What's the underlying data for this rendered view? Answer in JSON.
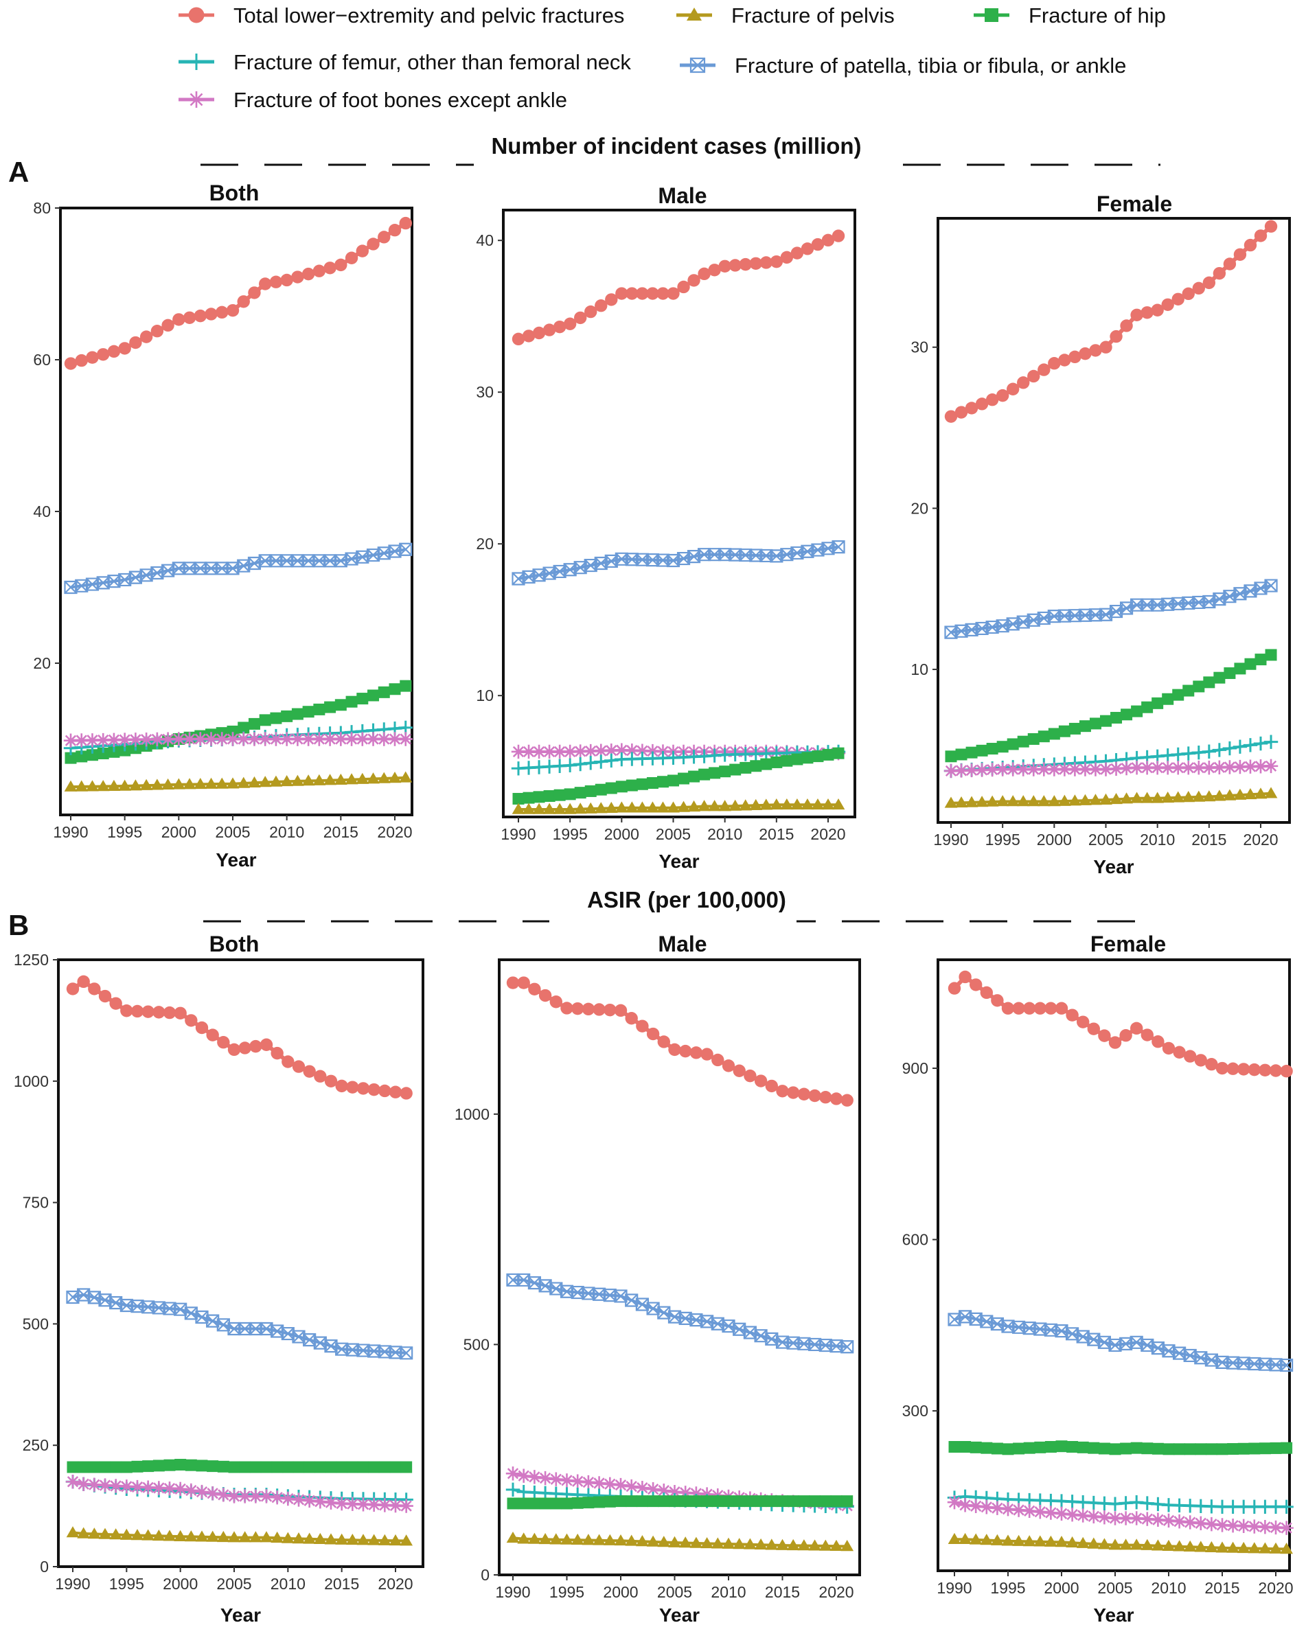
{
  "legend": [
    {
      "label": "Total lower−extremity and pelvic fractures",
      "color": "#E8736C",
      "marker": "circle"
    },
    {
      "label": "Fracture of pelvis",
      "color": "#B49A1E",
      "marker": "triangle"
    },
    {
      "label": "Fracture of hip",
      "color": "#2DB04A",
      "marker": "square"
    },
    {
      "label": "Fracture of femur, other than femoral neck",
      "color": "#27B5B5",
      "marker": "plus"
    },
    {
      "label": "Fracture of patella, tibia or fibula, or ankle",
      "color": "#6A9AD6",
      "marker": "boxx"
    },
    {
      "label": "Fracture of foot bones except ankle",
      "color": "#D279C4",
      "marker": "asterisk"
    }
  ],
  "sections": [
    {
      "letter": "A",
      "title": "Number of incident cases (million)"
    },
    {
      "letter": "B",
      "title": "ASIR (per 100,000)"
    }
  ],
  "chart_data": [
    {
      "type": "line",
      "section": "A",
      "title": "Both",
      "xlabel": "Year",
      "ylabel": "",
      "xlim": [
        1990,
        2021
      ],
      "ylim": [
        0,
        80
      ],
      "yticks": [
        20,
        40,
        60,
        80
      ],
      "xticks": [
        1990,
        1995,
        2000,
        2005,
        2010,
        2015,
        2020
      ],
      "x": [
        1990,
        1995,
        2000,
        2005,
        2008,
        2010,
        2015,
        2021
      ],
      "series": [
        {
          "name": "Total lower−extremity and pelvic fractures",
          "values": [
            59.5,
            61.5,
            65.3,
            66.5,
            70,
            70.5,
            72.5,
            78
          ]
        },
        {
          "name": "Fracture of patella, tibia or fibula, or ankle",
          "values": [
            30,
            31,
            32.5,
            32.5,
            33.5,
            33.5,
            33.5,
            35
          ]
        },
        {
          "name": "Fracture of hip",
          "values": [
            7.5,
            8.5,
            10,
            11,
            12.5,
            13,
            14.5,
            17
          ]
        },
        {
          "name": "Fracture of femur, other than femoral neck",
          "values": [
            8.8,
            9.3,
            9.8,
            10,
            10.3,
            10.5,
            10.8,
            11.5
          ]
        },
        {
          "name": "Fracture of foot bones except ankle",
          "values": [
            9.8,
            9.9,
            10,
            10,
            10,
            10,
            10,
            10
          ]
        },
        {
          "name": "Fracture of pelvis",
          "values": [
            3.7,
            3.8,
            4,
            4.1,
            4.3,
            4.4,
            4.6,
            4.9
          ]
        }
      ]
    },
    {
      "type": "line",
      "section": "A",
      "title": "Male",
      "xlabel": "Year",
      "ylabel": "",
      "xlim": [
        1990,
        2021
      ],
      "ylim": [
        2,
        42
      ],
      "yticks": [
        10,
        20,
        30,
        40
      ],
      "xticks": [
        1990,
        1995,
        2000,
        2005,
        2010,
        2015,
        2020
      ],
      "x": [
        1990,
        1995,
        2000,
        2005,
        2008,
        2010,
        2015,
        2021
      ],
      "series": [
        {
          "name": "Total lower−extremity and pelvic fractures",
          "values": [
            33.5,
            34.5,
            36.5,
            36.5,
            37.8,
            38.3,
            38.6,
            40.3
          ]
        },
        {
          "name": "Fracture of patella, tibia or fibula, or ankle",
          "values": [
            17.7,
            18.3,
            19,
            18.9,
            19.3,
            19.3,
            19.2,
            19.8
          ]
        },
        {
          "name": "Fracture of foot bones except ankle",
          "values": [
            6.3,
            6.3,
            6.4,
            6.3,
            6.3,
            6.3,
            6.3,
            6.2
          ]
        },
        {
          "name": "Fracture of femur, other than femoral neck",
          "values": [
            5.2,
            5.4,
            5.8,
            5.9,
            6,
            6.1,
            6.2,
            6.3
          ]
        },
        {
          "name": "Fracture of hip",
          "values": [
            3.2,
            3.5,
            4,
            4.4,
            4.8,
            5,
            5.6,
            6.2
          ]
        },
        {
          "name": "Fracture of pelvis",
          "values": [
            2.5,
            2.5,
            2.6,
            2.6,
            2.7,
            2.7,
            2.8,
            2.8
          ]
        }
      ]
    },
    {
      "type": "line",
      "section": "A",
      "title": "Female",
      "xlabel": "Year",
      "ylabel": "",
      "xlim": [
        1990,
        2021
      ],
      "ylim": [
        0.5,
        38
      ],
      "yticks": [
        10,
        20,
        30
      ],
      "xticks": [
        1990,
        1995,
        2000,
        2005,
        2010,
        2015,
        2020
      ],
      "x": [
        1990,
        1995,
        2000,
        2005,
        2008,
        2010,
        2015,
        2021
      ],
      "series": [
        {
          "name": "Total lower−extremity and pelvic fractures",
          "values": [
            25.7,
            27,
            29,
            30,
            32,
            32.3,
            34,
            37.5
          ]
        },
        {
          "name": "Fracture of patella, tibia or fibula, or ankle",
          "values": [
            12.3,
            12.7,
            13.3,
            13.4,
            14,
            14,
            14.2,
            15.2
          ]
        },
        {
          "name": "Fracture of hip",
          "values": [
            4.6,
            5.2,
            6,
            6.8,
            7.4,
            7.9,
            9.2,
            10.9
          ]
        },
        {
          "name": "Fracture of femur, other than femoral neck",
          "values": [
            3.7,
            3.9,
            4.1,
            4.3,
            4.5,
            4.6,
            4.9,
            5.5
          ]
        },
        {
          "name": "Fracture of foot bones except ankle",
          "values": [
            3.7,
            3.8,
            3.8,
            3.8,
            3.9,
            3.9,
            3.9,
            4
          ]
        },
        {
          "name": "Fracture of pelvis",
          "values": [
            1.7,
            1.8,
            1.8,
            1.9,
            2,
            2,
            2.1,
            2.3
          ]
        }
      ]
    },
    {
      "type": "line",
      "section": "B",
      "title": "Both",
      "xlabel": "Year",
      "ylabel": "",
      "xlim": [
        1990,
        2021
      ],
      "ylim": [
        0,
        1250
      ],
      "yticks": [
        0,
        250,
        500,
        750,
        1000,
        1250
      ],
      "xticks": [
        1990,
        1995,
        2000,
        2005,
        2010,
        2015,
        2020
      ],
      "x": [
        1990,
        1991,
        1995,
        2000,
        2005,
        2008,
        2010,
        2015,
        2021
      ],
      "series": [
        {
          "name": "Total lower−extremity and pelvic fractures",
          "values": [
            1190,
            1205,
            1145,
            1140,
            1065,
            1075,
            1040,
            990,
            975
          ]
        },
        {
          "name": "Fracture of patella, tibia or fibula, or ankle",
          "values": [
            555,
            560,
            538,
            530,
            490,
            490,
            480,
            448,
            440
          ]
        },
        {
          "name": "Fracture of hip",
          "values": [
            205,
            205,
            205,
            210,
            205,
            205,
            205,
            205,
            205
          ]
        },
        {
          "name": "Fracture of femur, other than femoral neck",
          "values": [
            175,
            170,
            160,
            155,
            148,
            148,
            145,
            140,
            138
          ]
        },
        {
          "name": "Fracture of foot bones except ankle",
          "values": [
            175,
            170,
            165,
            160,
            145,
            145,
            140,
            130,
            125
          ]
        },
        {
          "name": "Fracture of pelvis",
          "values": [
            70,
            68,
            65,
            62,
            60,
            60,
            58,
            55,
            53
          ]
        }
      ]
    },
    {
      "type": "line",
      "section": "B",
      "title": "Male",
      "xlabel": "Year",
      "ylabel": "",
      "xlim": [
        1990,
        2021
      ],
      "ylim": [
        0,
        1335
      ],
      "yticks": [
        0,
        500,
        1000
      ],
      "xticks": [
        1990,
        1995,
        2000,
        2005,
        2010,
        2015,
        2020
      ],
      "x": [
        1990,
        1991,
        1995,
        2000,
        2005,
        2008,
        2010,
        2015,
        2021
      ],
      "series": [
        {
          "name": "Total lower−extremity and pelvic fractures",
          "values": [
            1285,
            1285,
            1230,
            1225,
            1140,
            1130,
            1105,
            1050,
            1030
          ]
        },
        {
          "name": "Fracture of patella, tibia or fibula, or ankle",
          "values": [
            640,
            640,
            615,
            605,
            560,
            550,
            540,
            505,
            495
          ]
        },
        {
          "name": "Fracture of foot bones except ankle",
          "values": [
            220,
            215,
            205,
            195,
            180,
            175,
            170,
            160,
            150
          ]
        },
        {
          "name": "Fracture of femur, other than femoral neck",
          "values": [
            185,
            180,
            175,
            170,
            162,
            160,
            158,
            152,
            148
          ]
        },
        {
          "name": "Fracture of hip",
          "values": [
            155,
            155,
            155,
            160,
            160,
            160,
            160,
            160,
            160
          ]
        },
        {
          "name": "Fracture of pelvis",
          "values": [
            80,
            78,
            76,
            74,
            70,
            68,
            67,
            64,
            62
          ]
        }
      ]
    },
    {
      "type": "line",
      "section": "B",
      "title": "Female",
      "xlabel": "Year",
      "ylabel": "",
      "xlim": [
        1990,
        2021
      ],
      "ylim": [
        20,
        1090
      ],
      "yticks": [
        300,
        600,
        900
      ],
      "xticks": [
        1990,
        1995,
        2000,
        2005,
        2010,
        2015,
        2020
      ],
      "x": [
        1990,
        1991,
        1995,
        2000,
        2005,
        2007,
        2010,
        2015,
        2021
      ],
      "series": [
        {
          "name": "Total lower−extremity and pelvic fractures",
          "values": [
            1040,
            1060,
            1005,
            1005,
            945,
            970,
            935,
            900,
            895
          ]
        },
        {
          "name": "Fracture of patella, tibia or fibula, or ankle",
          "values": [
            460,
            465,
            448,
            440,
            415,
            420,
            405,
            385,
            380
          ]
        },
        {
          "name": "Fracture of hip",
          "values": [
            237,
            237,
            233,
            238,
            233,
            235,
            233,
            233,
            235
          ]
        },
        {
          "name": "Fracture of femur, other than femoral neck",
          "values": [
            148,
            150,
            145,
            142,
            137,
            140,
            135,
            132,
            132
          ]
        },
        {
          "name": "Fracture of foot bones except ankle",
          "values": [
            140,
            135,
            128,
            120,
            112,
            112,
            108,
            100,
            95
          ]
        },
        {
          "name": "Fracture of pelvis",
          "values": [
            75,
            75,
            72,
            70,
            65,
            65,
            63,
            60,
            58
          ]
        }
      ]
    }
  ]
}
